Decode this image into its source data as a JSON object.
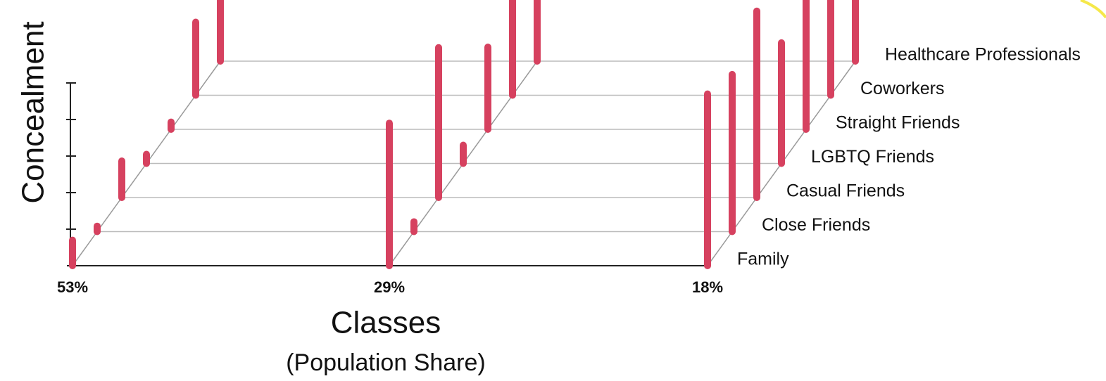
{
  "chart_data": {
    "type": "bar",
    "y_label": "Concealment",
    "x_label": "Classes",
    "x_sublabel": "(Population Share)",
    "categories": [
      "53%",
      "29%",
      "18%"
    ],
    "color": "#d6415f",
    "ylim": [
      0,
      5
    ],
    "yticks": [
      1,
      2,
      3,
      4,
      5
    ],
    "series": [
      {
        "name": "Family",
        "values": [
          0.7,
          3.9,
          4.7
        ]
      },
      {
        "name": "Close Friends",
        "values": [
          0.15,
          0.27,
          4.3
        ]
      },
      {
        "name": "Casual Friends",
        "values": [
          1.0,
          4.1,
          5.1
        ]
      },
      {
        "name": "LGBTQ Friends",
        "values": [
          0.25,
          0.5,
          3.3
        ]
      },
      {
        "name": "Straight Friends",
        "values": [
          0.2,
          2.25,
          4.5
        ]
      },
      {
        "name": "Coworkers",
        "values": [
          2.0,
          3.0,
          5.0
        ]
      },
      {
        "name": "Healthcare Professionals",
        "values": [
          2.5,
          3.5,
          5.5
        ]
      }
    ]
  }
}
